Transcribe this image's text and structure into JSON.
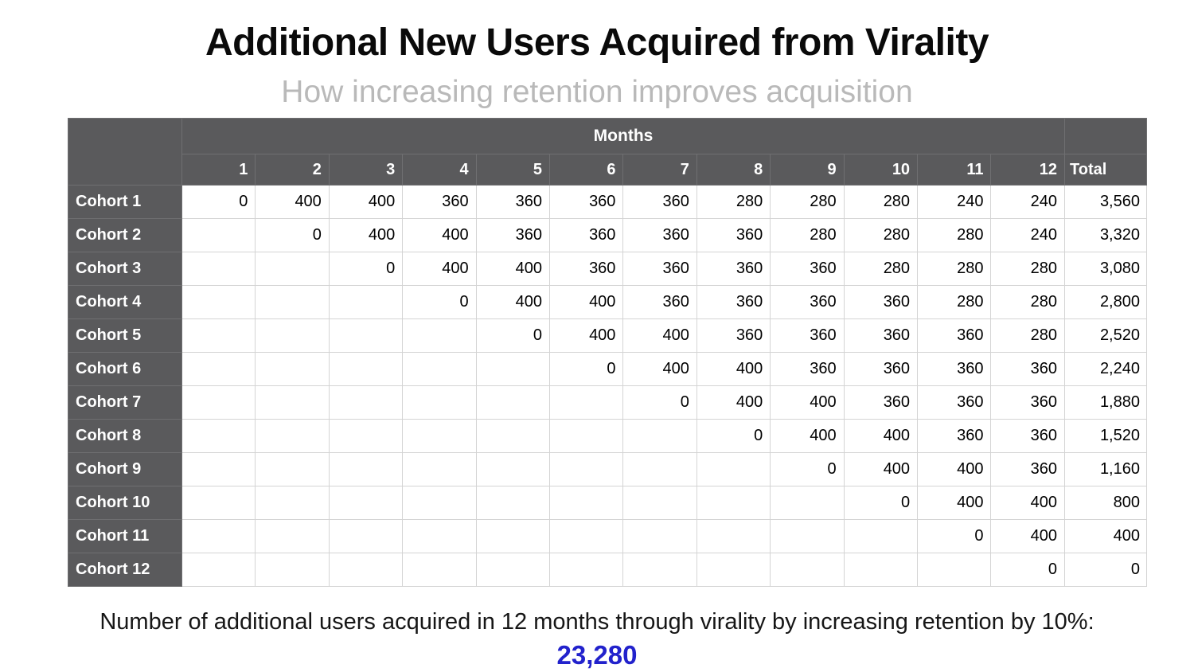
{
  "colors": {
    "header_bg": "#5a5a5c",
    "header_text": "#ffffff",
    "header_grid_line": "#6f6f71",
    "grid_line": "#d4d4d4",
    "body_text": "#000000",
    "title_text": "#0a0a0a",
    "subtitle_text": "#b9b9b9",
    "highlight_text": "#2222cc"
  },
  "chart_data": {
    "type": "table",
    "title": "Additional New Users Acquired from Virality",
    "subtitle": "How increasing retention improves acquisition",
    "column_group_label": "Months",
    "month_columns": [
      "1",
      "2",
      "3",
      "4",
      "5",
      "6",
      "7",
      "8",
      "9",
      "10",
      "11",
      "12"
    ],
    "total_column_label": "Total",
    "rows": [
      {
        "label": "Cohort 1",
        "values": [
          "0",
          "400",
          "400",
          "360",
          "360",
          "360",
          "360",
          "280",
          "280",
          "280",
          "240",
          "240"
        ],
        "total": "3,560"
      },
      {
        "label": "Cohort 2",
        "values": [
          "",
          "0",
          "400",
          "400",
          "360",
          "360",
          "360",
          "360",
          "280",
          "280",
          "280",
          "240"
        ],
        "total": "3,320"
      },
      {
        "label": "Cohort 3",
        "values": [
          "",
          "",
          "0",
          "400",
          "400",
          "360",
          "360",
          "360",
          "360",
          "280",
          "280",
          "280"
        ],
        "total": "3,080"
      },
      {
        "label": "Cohort 4",
        "values": [
          "",
          "",
          "",
          "0",
          "400",
          "400",
          "360",
          "360",
          "360",
          "360",
          "280",
          "280"
        ],
        "total": "2,800"
      },
      {
        "label": "Cohort 5",
        "values": [
          "",
          "",
          "",
          "",
          "0",
          "400",
          "400",
          "360",
          "360",
          "360",
          "360",
          "280"
        ],
        "total": "2,520"
      },
      {
        "label": "Cohort 6",
        "values": [
          "",
          "",
          "",
          "",
          "",
          "0",
          "400",
          "400",
          "360",
          "360",
          "360",
          "360"
        ],
        "total": "2,240"
      },
      {
        "label": "Cohort 7",
        "values": [
          "",
          "",
          "",
          "",
          "",
          "",
          "0",
          "400",
          "400",
          "360",
          "360",
          "360"
        ],
        "total": "1,880"
      },
      {
        "label": "Cohort 8",
        "values": [
          "",
          "",
          "",
          "",
          "",
          "",
          "",
          "0",
          "400",
          "400",
          "360",
          "360"
        ],
        "total": "1,520"
      },
      {
        "label": "Cohort 9",
        "values": [
          "",
          "",
          "",
          "",
          "",
          "",
          "",
          "",
          "0",
          "400",
          "400",
          "360"
        ],
        "total": "1,160"
      },
      {
        "label": "Cohort 10",
        "values": [
          "",
          "",
          "",
          "",
          "",
          "",
          "",
          "",
          "",
          "0",
          "400",
          "400"
        ],
        "total": "800"
      },
      {
        "label": "Cohort 11",
        "values": [
          "",
          "",
          "",
          "",
          "",
          "",
          "",
          "",
          "",
          "",
          "0",
          "400"
        ],
        "total": "400"
      },
      {
        "label": "Cohort 12",
        "values": [
          "",
          "",
          "",
          "",
          "",
          "",
          "",
          "",
          "",
          "",
          "",
          "0"
        ],
        "total": "0"
      }
    ],
    "footnote": "Number of additional users acquired in 12 months through virality by increasing retention by 10%:",
    "highlight_value": "23,280"
  }
}
